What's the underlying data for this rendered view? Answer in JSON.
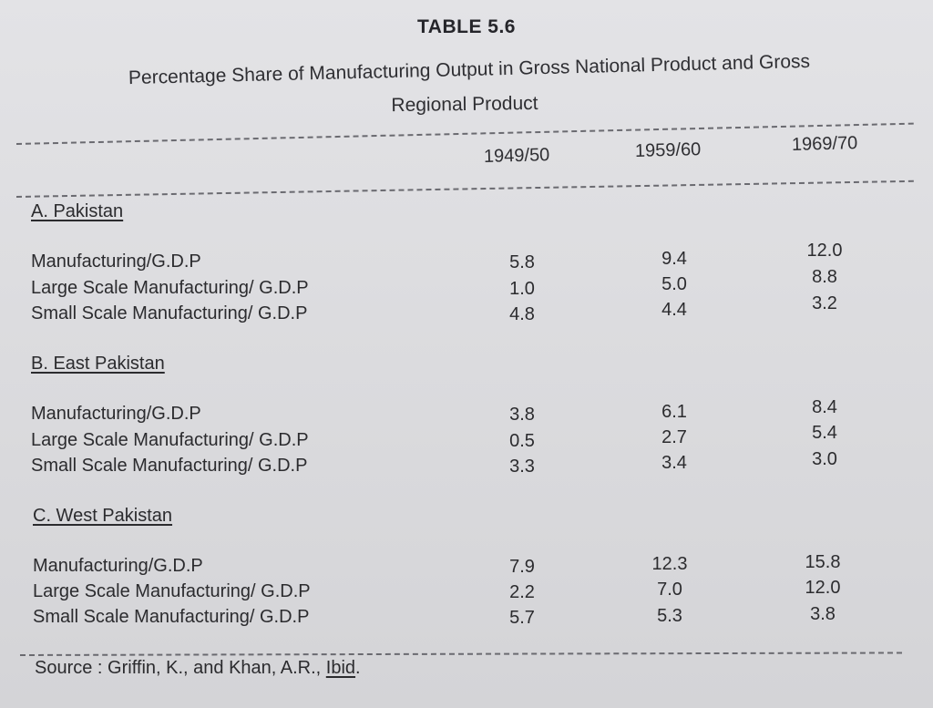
{
  "table_number": "TABLE 5.6",
  "title_line1": "Percentage Share of Manufacturing Output in Gross National Product and Gross",
  "title_line2": "Regional Product",
  "columns": [
    "1949/50",
    "1959/60",
    "1969/70"
  ],
  "sections": [
    {
      "title": "A. Pakistan",
      "rows": [
        {
          "label": "Manufacturing/G.D.P",
          "values": [
            "5.8",
            "9.4",
            "12.0"
          ]
        },
        {
          "label": "Large Scale Manufacturing/ G.D.P",
          "values": [
            "1.0",
            "5.0",
            "8.8"
          ]
        },
        {
          "label": "Small Scale Manufacturing/ G.D.P",
          "values": [
            "4.8",
            "4.4",
            "3.2"
          ]
        }
      ]
    },
    {
      "title": "B. East Pakistan",
      "rows": [
        {
          "label": "Manufacturing/G.D.P",
          "values": [
            "3.8",
            "6.1",
            "8.4"
          ]
        },
        {
          "label": "Large Scale Manufacturing/ G.D.P",
          "values": [
            "0.5",
            "2.7",
            "5.4"
          ]
        },
        {
          "label": "Small Scale Manufacturing/ G.D.P",
          "values": [
            "3.3",
            "3.4",
            "3.0"
          ]
        }
      ]
    },
    {
      "title": "C. West Pakistan",
      "rows": [
        {
          "label": "Manufacturing/G.D.P",
          "values": [
            "7.9",
            "12.3",
            "15.8"
          ]
        },
        {
          "label": "Large Scale Manufacturing/ G.D.P",
          "values": [
            "2.2",
            "7.0",
            "12.0"
          ]
        },
        {
          "label": "Small Scale Manufacturing/ G.D.P",
          "values": [
            "5.7",
            "5.3",
            "3.8"
          ]
        }
      ]
    }
  ],
  "source": {
    "prefix": "Source : Griffin, K., and Khan, A.R., ",
    "ibid": "Ibid",
    "suffix": "."
  }
}
